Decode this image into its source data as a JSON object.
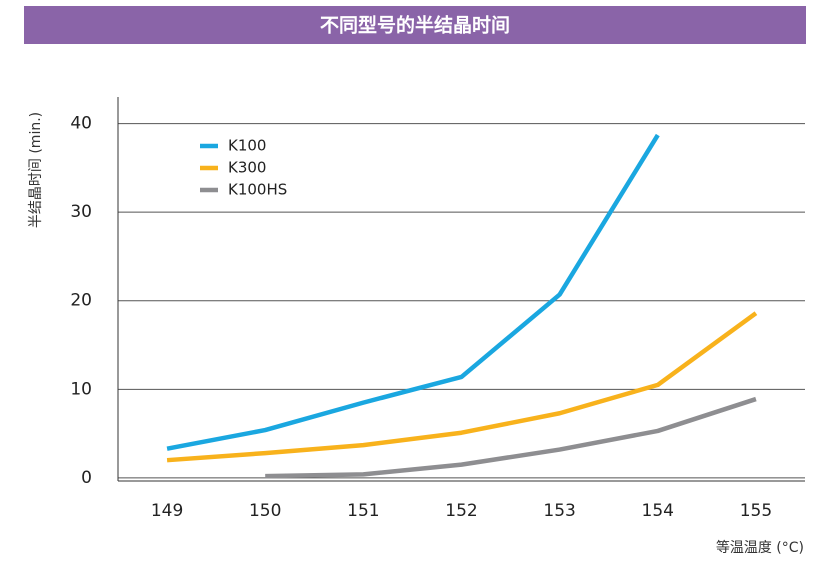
{
  "chart_data": {
    "type": "line",
    "title": "不同型号的半结晶时间",
    "x": [
      149,
      150,
      151,
      152,
      153,
      154,
      155
    ],
    "series": [
      {
        "name": "K100",
        "color": "#1aa7e0",
        "values": [
          3.3,
          5.4,
          8.5,
          11.4,
          20.7,
          38.7,
          null
        ]
      },
      {
        "name": "K300",
        "color": "#f8b21c",
        "values": [
          2.0,
          2.8,
          3.7,
          5.1,
          7.3,
          10.5,
          18.6
        ]
      },
      {
        "name": "K100HS",
        "color": "#8e8e91",
        "values": [
          null,
          0.2,
          0.4,
          1.5,
          3.2,
          5.3,
          8.9
        ]
      }
    ],
    "xlim": [
      148.5,
      155.5
    ],
    "xticks": [
      149,
      150,
      151,
      152,
      153,
      154,
      155
    ],
    "ylim": [
      -0.35,
      43
    ],
    "yticks": [
      0,
      10,
      20,
      30,
      40
    ],
    "ylabel": "半结晶时间 (min.)",
    "xlabel": "等温温度 (°C)",
    "grid": true,
    "legend": "upper left"
  }
}
